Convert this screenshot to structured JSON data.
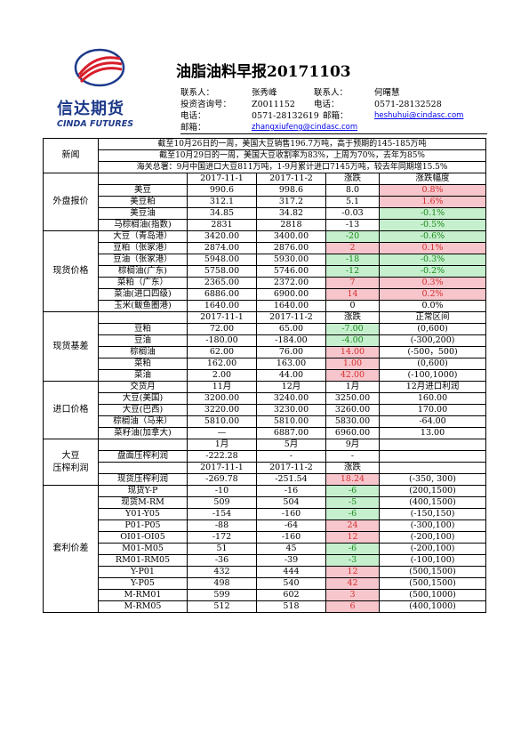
{
  "logo": {
    "cn": "信达期货",
    "en": "CINDA FUTURES"
  },
  "title": "油脂油料早报20171103",
  "contacts": {
    "l_contact": "联系人：",
    "contact1": "张秀峰",
    "l_contact2": "联系人：",
    "contact2": "何曙慧",
    "l_license": "投资咨询号：",
    "license": "Z0011152",
    "l_phone": "电话：",
    "phone2": "0571-28132528",
    "l_phone1": "电话：",
    "phone1": "0571-28132619",
    "l_email": "邮箱：",
    "email2": "heshuhui@cindasc.com",
    "l_email1": "邮箱：",
    "email1": "zhangxiufeng@cindasc.com"
  },
  "news": {
    "label": "新闻",
    "lines": [
      "截至10月26日的一周，美国大豆销售196.7万吨，高于预期的145-185万吨",
      "截至10月29日的一周，美国大豆收割率为83%，上周为70%，去年为85%",
      "海关总署：9月中国进口大豆811万吨，1-9月累计进口7145万吨，较去年同期增15.5%"
    ]
  },
  "external": {
    "label": "外盘报价",
    "header": [
      "",
      "2017-11-1",
      "2017-11-2",
      "涨跌",
      "涨跌幅度"
    ],
    "rows": [
      {
        "name": "美豆",
        "v1": "990.6",
        "v2": "998.6",
        "chg": "8.0",
        "pct": "0.8%",
        "dir": "up"
      },
      {
        "name": "美豆粕",
        "v1": "312.1",
        "v2": "317.2",
        "chg": "5.1",
        "pct": "1.6%",
        "dir": "up"
      },
      {
        "name": "美豆油",
        "v1": "34.85",
        "v2": "34.82",
        "chg": "-0.03",
        "pct": "-0.1%",
        "dir": "down"
      },
      {
        "name": "马棕榈油(指数)",
        "v1": "2831",
        "v2": "2818",
        "chg": "-13",
        "pct": "-0.5%",
        "dir": "down"
      }
    ]
  },
  "spot": {
    "label": "现货价格",
    "rows": [
      {
        "name": "大豆（青岛港）",
        "v1": "3420.00",
        "v2": "3400.00",
        "chg": "-20",
        "pct": "-0.6%",
        "dir": "down"
      },
      {
        "name": "豆粕（张家港）",
        "v1": "2874.00",
        "v2": "2876.00",
        "chg": "2",
        "pct": "0.1%",
        "dir": "up"
      },
      {
        "name": "豆油（张家港）",
        "v1": "5948.00",
        "v2": "5930.00",
        "chg": "-18",
        "pct": "-0.3%",
        "dir": "down"
      },
      {
        "name": "棕榈油(广东)",
        "v1": "5758.00",
        "v2": "5746.00",
        "chg": "-12",
        "pct": "-0.2%",
        "dir": "down"
      },
      {
        "name": "菜粕（广东）",
        "v1": "2365.00",
        "v2": "2372.00",
        "chg": "7",
        "pct": "0.3%",
        "dir": "up"
      },
      {
        "name": "菜油(进口四级)",
        "v1": "6886.00",
        "v2": "6900.00",
        "chg": "14",
        "pct": "0.2%",
        "dir": "up"
      },
      {
        "name": "玉米(鲅鱼圈港)",
        "v1": "1640.00",
        "v2": "1640.00",
        "chg": "0",
        "pct": "0.0%",
        "dir": "none"
      }
    ]
  },
  "basis": {
    "label": "现货基差",
    "header": [
      "",
      "2017-11-1",
      "2017-11-2",
      "涨跌",
      "正常区间"
    ],
    "rows": [
      {
        "name": "豆粕",
        "v1": "72.00",
        "v2": "65.00",
        "chg": "-7.00",
        "range": "(0,600)",
        "dir": "down"
      },
      {
        "name": "豆油",
        "v1": "-180.00",
        "v2": "-184.00",
        "chg": "-4.00",
        "range": "(-300,200)",
        "dir": "down"
      },
      {
        "name": "棕榈油",
        "v1": "62.00",
        "v2": "76.00",
        "chg": "14.00",
        "range": "(-500，500)",
        "dir": "up"
      },
      {
        "name": "菜粕",
        "v1": "162.00",
        "v2": "163.00",
        "chg": "1.00",
        "range": "(0,600)",
        "dir": "up"
      },
      {
        "name": "菜油",
        "v1": "2.00",
        "v2": "44.00",
        "chg": "42.00",
        "range": "(-100,1000)",
        "dir": "up"
      }
    ]
  },
  "import": {
    "label": "进口价格",
    "header": [
      "交货月",
      "11月",
      "12月",
      "1月",
      "12月进口利润"
    ],
    "rows": [
      {
        "name": "大豆(美国)",
        "v1": "3200.00",
        "v2": "3240.00",
        "v3": "3250.00",
        "profit": "160.00"
      },
      {
        "name": "大豆(巴西)",
        "v1": "3220.00",
        "v2": "3230.00",
        "v3": "3260.00",
        "profit": "170.00"
      },
      {
        "name": "棕榈油（马来）",
        "v1": "5810.00",
        "v2": "5810.00",
        "v3": "5830.00",
        "profit": "-64.00"
      },
      {
        "name": "菜籽油(加拿大)",
        "v1": "—",
        "v2": "6887.00",
        "v3": "6960.00",
        "profit": "13.00"
      }
    ]
  },
  "crush": {
    "label1": "大豆",
    "label2": "压榨利润",
    "months": [
      "",
      "1月",
      "5月",
      "9月",
      ""
    ],
    "futures_row": {
      "name": "盘面压榨利润",
      "v1": "-222.28",
      "v2": "-",
      "v3": "-"
    },
    "header": [
      "",
      "2017-11-1",
      "2017-11-2",
      "涨跌",
      ""
    ],
    "spot_row": {
      "name": "现货压榨利润",
      "v1": "-269.78",
      "v2": "-251.54",
      "chg": "18.24",
      "range": "(-350, 300)",
      "dir": "up"
    }
  },
  "arb": {
    "label": "套利价差",
    "rows": [
      {
        "name": "现货Y-P",
        "v1": "-10",
        "v2": "-16",
        "chg": "-6",
        "range": "(200,1500)",
        "dir": "down"
      },
      {
        "name": "现货M-RM",
        "v1": "509",
        "v2": "504",
        "chg": "-5",
        "range": "(400,1500)",
        "dir": "down"
      },
      {
        "name": "Y01-Y05",
        "v1": "-154",
        "v2": "-160",
        "chg": "-6",
        "range": "(-150,150)",
        "dir": "down"
      },
      {
        "name": "P01-P05",
        "v1": "-88",
        "v2": "-64",
        "chg": "24",
        "range": "(-300,100)",
        "dir": "up"
      },
      {
        "name": "OI01-OI05",
        "v1": "-172",
        "v2": "-160",
        "chg": "12",
        "range": "(-200,100)",
        "dir": "up"
      },
      {
        "name": "M01-M05",
        "v1": "51",
        "v2": "45",
        "chg": "-6",
        "range": "(-200,100)",
        "dir": "down"
      },
      {
        "name": "RM01-RM05",
        "v1": "-36",
        "v2": "-39",
        "chg": "-3",
        "range": "(-100,100)",
        "dir": "down"
      },
      {
        "name": "Y-P01",
        "v1": "432",
        "v2": "444",
        "chg": "12",
        "range": "(500,1500)",
        "dir": "up"
      },
      {
        "name": "Y-P05",
        "v1": "498",
        "v2": "540",
        "chg": "42",
        "range": "(500,1500)",
        "dir": "up"
      },
      {
        "name": "M-RM01",
        "v1": "599",
        "v2": "602",
        "chg": "3",
        "range": "(500,1000)",
        "dir": "up"
      },
      {
        "name": "M-RM05",
        "v1": "512",
        "v2": "518",
        "chg": "6",
        "range": "(400,1000)",
        "dir": "up"
      }
    ]
  }
}
